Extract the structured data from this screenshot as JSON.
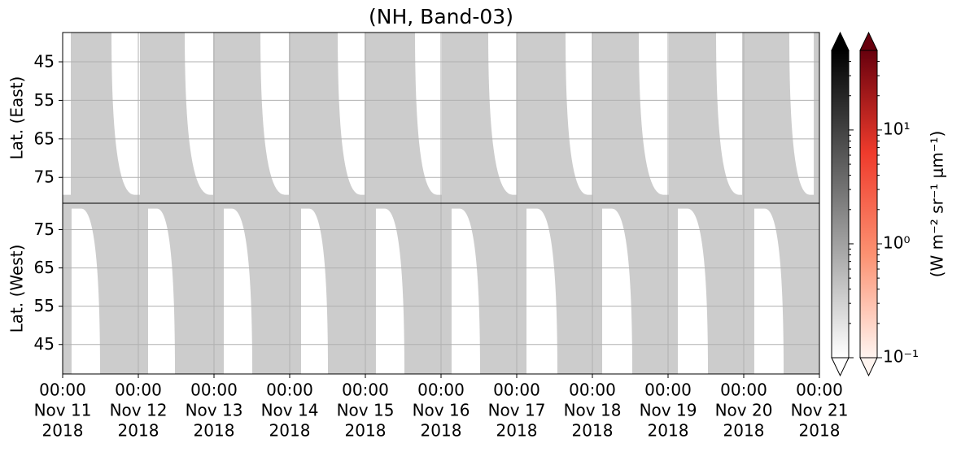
{
  "chart_data": {
    "type": "heatmap",
    "title": "(NH, Band-03)",
    "xlim": [
      "2018-11-11 00:00",
      "2018-11-21 00:00"
    ],
    "xticks": [
      {
        "value": "2018-11-11 00:00",
        "label": [
          "00:00",
          "Nov 11",
          "2018"
        ]
      },
      {
        "value": "2018-11-12 00:00",
        "label": [
          "00:00",
          "Nov 12",
          "2018"
        ]
      },
      {
        "value": "2018-11-13 00:00",
        "label": [
          "00:00",
          "Nov 13",
          "2018"
        ]
      },
      {
        "value": "2018-11-14 00:00",
        "label": [
          "00:00",
          "Nov 14",
          "2018"
        ]
      },
      {
        "value": "2018-11-15 00:00",
        "label": [
          "00:00",
          "Nov 15",
          "2018"
        ]
      },
      {
        "value": "2018-11-16 00:00",
        "label": [
          "00:00",
          "Nov 16",
          "2018"
        ]
      },
      {
        "value": "2018-11-17 00:00",
        "label": [
          "00:00",
          "Nov 17",
          "2018"
        ]
      },
      {
        "value": "2018-11-18 00:00",
        "label": [
          "00:00",
          "Nov 18",
          "2018"
        ]
      },
      {
        "value": "2018-11-19 00:00",
        "label": [
          "00:00",
          "Nov 19",
          "2018"
        ]
      },
      {
        "value": "2018-11-20 00:00",
        "label": [
          "00:00",
          "Nov 20",
          "2018"
        ]
      },
      {
        "value": "2018-11-21 00:00",
        "label": [
          "00:00",
          "Nov 21",
          "2018"
        ]
      }
    ],
    "grid": true,
    "coverage_color": "#cccccc",
    "panels": [
      {
        "ylabel": "Lat. (East)",
        "ylim": [
          37.4,
          81.7
        ],
        "yticks": [
          45,
          55,
          65,
          75
        ],
        "gap_lat": 79.5,
        "gaps": [
          [
            "2018-11-11 00:00",
            "2018-11-11 00:00",
            "2018-11-11 02:35"
          ],
          [
            "2018-11-11 15:29",
            "2018-11-11 22:42",
            "2018-11-12 00:30"
          ],
          [
            "2018-11-12 14:43",
            "2018-11-12 22:42",
            "2018-11-12 23:44"
          ],
          [
            "2018-11-13 14:43",
            "2018-11-13 22:27",
            "2018-11-13 23:44"
          ],
          [
            "2018-11-14 15:14",
            "2018-11-14 22:27",
            "2018-11-14 23:44"
          ],
          [
            "2018-11-15 15:45",
            "2018-11-15 22:42",
            "2018-11-16 00:15"
          ],
          [
            "2018-11-16 14:58",
            "2018-11-16 22:42",
            "2018-11-17 00:00"
          ],
          [
            "2018-11-17 15:29",
            "2018-11-17 22:27",
            "2018-11-18 00:00"
          ],
          [
            "2018-11-18 14:43",
            "2018-11-18 22:27",
            "2018-11-19 00:15"
          ],
          [
            "2018-11-19 15:14",
            "2018-11-19 22:27",
            "2018-11-19 23:29"
          ],
          [
            "2018-11-20 14:27",
            "2018-11-20 20:54",
            "2018-11-20 22:12"
          ]
        ]
      },
      {
        "ylabel": "Lat. (West)",
        "ylim": [
          81.9,
          37.3
        ],
        "yticks": [
          75,
          65,
          55,
          45
        ],
        "gap_lat": 80.5,
        "gaps": [
          [
            "2018-11-11 02:50",
            "2018-11-11 05:56",
            "2018-11-11 11:52"
          ],
          [
            "2018-11-12 03:06",
            "2018-11-12 05:56",
            "2018-11-12 11:37"
          ],
          [
            "2018-11-13 03:06",
            "2018-11-13 05:41",
            "2018-11-13 12:08"
          ],
          [
            "2018-11-14 03:37",
            "2018-11-14 06:12",
            "2018-11-14 12:08"
          ],
          [
            "2018-11-15 03:21",
            "2018-11-15 06:12",
            "2018-11-15 12:23"
          ],
          [
            "2018-11-16 03:21",
            "2018-11-16 05:56",
            "2018-11-16 12:23"
          ],
          [
            "2018-11-17 03:06",
            "2018-11-17 06:27",
            "2018-11-17 12:54"
          ],
          [
            "2018-11-18 03:06",
            "2018-11-18 06:12",
            "2018-11-18 12:39"
          ],
          [
            "2018-11-19 03:06",
            "2018-11-19 06:12",
            "2018-11-19 12:39"
          ],
          [
            "2018-11-20 03:21",
            "2018-11-20 06:42",
            "2018-11-20 12:39"
          ]
        ]
      }
    ],
    "colorbar": {
      "label": "(W m⁻² sr⁻¹ μm⁻¹)",
      "scale": "log",
      "clim": [
        0.1,
        50
      ],
      "ticks": [
        {
          "value": 0.1,
          "label": "10⁻¹"
        },
        {
          "value": 1,
          "label": "10⁰"
        },
        {
          "value": 10,
          "label": "10¹"
        }
      ],
      "cmaps": [
        {
          "colors": [
            "#ffffff",
            "#000000"
          ]
        },
        {
          "colors": [
            "#fff5f0",
            "#fc9272",
            "#ef3b2c",
            "#67000d"
          ]
        }
      ]
    }
  }
}
